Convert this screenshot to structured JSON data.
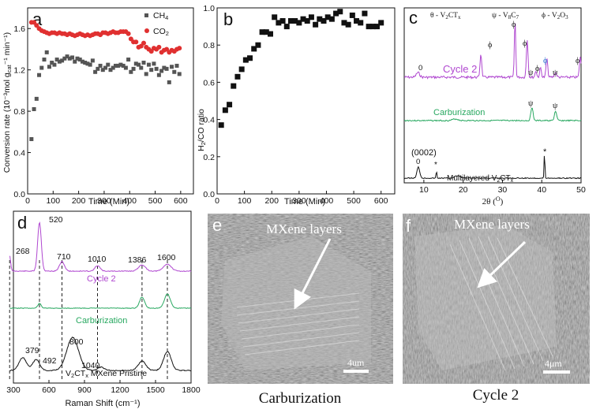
{
  "panel_labels": {
    "a": "a",
    "b": "b",
    "c": "c",
    "d": "d",
    "e": "e",
    "f": "f"
  },
  "chart_data": [
    {
      "type": "scatter",
      "panel": "a",
      "xlabel": "Time (Min)",
      "ylabel": "Conversion rate (10⁻³mol g",
      "ylabel_sub": "cat",
      "ylabel_tail": "⁻¹ min⁻¹)",
      "xlim": [
        0,
        650
      ],
      "ylim": [
        0.0,
        1.8
      ],
      "xticks": [
        "0",
        "100",
        "200",
        "300",
        "400",
        "500",
        "600"
      ],
      "yticks": [
        "0.0",
        "0.4",
        "0.8",
        "1.2",
        "1.6"
      ],
      "legend": [
        "CH",
        "CO"
      ],
      "legend_sub": [
        "4",
        "2"
      ],
      "series": [
        {
          "name": "CH4",
          "color": "#555555",
          "marker": "square",
          "x": [
            15,
            25,
            35,
            45,
            55,
            65,
            75,
            85,
            95,
            105,
            115,
            125,
            135,
            145,
            155,
            165,
            175,
            185,
            195,
            205,
            215,
            225,
            235,
            245,
            255,
            265,
            275,
            285,
            295,
            305,
            315,
            325,
            335,
            345,
            355,
            365,
            375,
            385,
            395,
            405,
            415,
            425,
            435,
            445,
            455,
            465,
            475,
            485,
            495,
            505,
            515,
            525,
            535,
            545,
            555,
            565,
            575,
            585,
            595
          ],
          "y": [
            0.53,
            0.82,
            0.92,
            1.15,
            1.22,
            1.3,
            1.37,
            1.23,
            1.27,
            1.25,
            1.3,
            1.28,
            1.29,
            1.31,
            1.33,
            1.31,
            1.32,
            1.28,
            1.31,
            1.3,
            1.28,
            1.27,
            1.26,
            1.25,
            1.29,
            1.18,
            1.21,
            1.24,
            1.2,
            1.22,
            1.25,
            1.2,
            1.22,
            1.24,
            1.24,
            1.25,
            1.24,
            1.22,
            1.3,
            1.18,
            1.21,
            1.26,
            1.25,
            1.22,
            1.27,
            1.16,
            1.25,
            1.2,
            1.26,
            1.21,
            1.15,
            1.19,
            1.22,
            1.21,
            1.08,
            1.23,
            1.18,
            1.24,
            1.16
          ]
        },
        {
          "name": "CO2",
          "color": "#e03030",
          "marker": "circle",
          "x": [
            15,
            25,
            35,
            45,
            55,
            65,
            75,
            85,
            95,
            105,
            115,
            125,
            135,
            145,
            155,
            165,
            175,
            185,
            195,
            205,
            215,
            225,
            235,
            245,
            255,
            265,
            275,
            285,
            295,
            305,
            315,
            325,
            335,
            345,
            355,
            365,
            375,
            385,
            395,
            405,
            415,
            425,
            435,
            445,
            455,
            465,
            475,
            485,
            495,
            505,
            515,
            525,
            535,
            545,
            555,
            565,
            575,
            585,
            595
          ],
          "y": [
            1.66,
            1.66,
            1.63,
            1.6,
            1.58,
            1.57,
            1.56,
            1.55,
            1.56,
            1.56,
            1.55,
            1.56,
            1.55,
            1.55,
            1.54,
            1.55,
            1.54,
            1.53,
            1.54,
            1.55,
            1.54,
            1.53,
            1.54,
            1.53,
            1.54,
            1.55,
            1.55,
            1.54,
            1.56,
            1.56,
            1.55,
            1.56,
            1.57,
            1.56,
            1.56,
            1.57,
            1.57,
            1.57,
            1.55,
            1.5,
            1.47,
            1.47,
            1.42,
            1.43,
            1.46,
            1.42,
            1.4,
            1.38,
            1.41,
            1.4,
            1.42,
            1.37,
            1.39,
            1.4,
            1.37,
            1.39,
            1.38,
            1.4,
            1.41
          ]
        }
      ]
    },
    {
      "type": "scatter",
      "panel": "b",
      "xlabel": "Time (Min)",
      "ylabel": "H/CO ratio",
      "ylabel_sub": "2",
      "xlim": [
        0,
        650
      ],
      "ylim": [
        0.0,
        1.0
      ],
      "xticks": [
        "0",
        "100",
        "200",
        "300",
        "400",
        "500",
        "600"
      ],
      "yticks": [
        "0.0",
        "0.2",
        "0.4",
        "0.6",
        "0.8",
        "1.0"
      ],
      "series": [
        {
          "name": "H2/CO",
          "color": "#111111",
          "marker": "square",
          "x": [
            15,
            30,
            45,
            60,
            75,
            90,
            105,
            120,
            135,
            150,
            165,
            180,
            195,
            210,
            225,
            240,
            255,
            270,
            285,
            300,
            315,
            330,
            345,
            360,
            375,
            390,
            405,
            420,
            435,
            450,
            465,
            480,
            495,
            510,
            525,
            540,
            555,
            570,
            585,
            600
          ],
          "y": [
            0.37,
            0.45,
            0.48,
            0.58,
            0.63,
            0.67,
            0.72,
            0.73,
            0.78,
            0.8,
            0.87,
            0.87,
            0.86,
            0.95,
            0.92,
            0.93,
            0.9,
            0.93,
            0.93,
            0.92,
            0.94,
            0.93,
            0.95,
            0.91,
            0.94,
            0.93,
            0.95,
            0.94,
            0.97,
            0.98,
            0.92,
            0.91,
            0.96,
            0.93,
            0.92,
            0.97,
            0.9,
            0.9,
            0.9,
            0.92
          ]
        }
      ]
    },
    {
      "type": "line",
      "panel": "c",
      "xlabel": "2θ (O)",
      "xlim": [
        5,
        50
      ],
      "xticks": [
        "10",
        "20",
        "30",
        "40",
        "50"
      ],
      "legend_top": [
        "θ - V2CTx",
        "ψ - V8C7",
        "ϕ - V2O3"
      ],
      "series": [
        {
          "name": "Cycle 2",
          "color": "#b048d0"
        },
        {
          "name": "Carburization",
          "color": "#28a860"
        },
        {
          "name": "Multilayered V2CTx",
          "color": "#111111"
        }
      ],
      "annotations": {
        "theta": "θ",
        "psi": "ψ",
        "phi": "ϕ",
        "star": "*",
        "peak0002": "(0002)",
        "zero": "0"
      }
    },
    {
      "type": "line",
      "panel": "d",
      "xlabel": "Raman Shift (cm⁻¹)",
      "xlim": [
        300,
        1800
      ],
      "xticks": [
        "300",
        "600",
        "900",
        "1200",
        "1500",
        "1800"
      ],
      "series": [
        {
          "name": "Cycle 2",
          "color": "#b048d0"
        },
        {
          "name": "Carburization",
          "color": "#28a860"
        },
        {
          "name": "V2CTx MXene Pristine",
          "color": "#111111"
        }
      ],
      "peak_labels_top": [
        "268",
        "520",
        "710",
        "1010",
        "1386",
        "1600"
      ],
      "peak_labels_bottom": [
        "379",
        "492",
        "800",
        "1040"
      ]
    }
  ],
  "images": [
    {
      "panel": "e",
      "annotation": "MXene layers",
      "scale": "4um",
      "caption": "Carburization"
    },
    {
      "panel": "f",
      "annotation": "MXene layers",
      "scale": "4μm",
      "caption": "Cycle 2"
    }
  ]
}
